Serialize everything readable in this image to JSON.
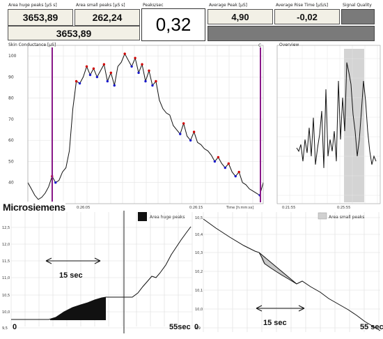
{
  "indicators": {
    "area_huge_peaks": {
      "label": "Area huge peaks [µS s]",
      "value": "3653,89"
    },
    "area_small_peaks": {
      "label": "Area small peaks [µS s]",
      "value": "262,24"
    },
    "total_area": {
      "value": "3653,89"
    },
    "peaks_per_sec": {
      "label": "Peaks/sec",
      "value": "0,32"
    },
    "average_peak": {
      "label": "Average Peak [µS]",
      "value": "4,90"
    },
    "average_rise_time": {
      "label": "Average Rise Time [µS/s]",
      "value": "-0,02"
    },
    "signal_quality": {
      "label": "Signal Quality"
    }
  },
  "colors": {
    "panel_bg": "#f2f0e6",
    "marker": "#8a1a8a",
    "peak_red": "#d00000",
    "trough_blue": "#1a1acc",
    "signal_quality": "#7a7a7a",
    "overview_window": "#d4d4d4"
  },
  "chart_data": [
    {
      "type": "line",
      "title": "Skin Conductance [µS]",
      "y_ticks": [
        "100",
        "90",
        "80",
        "70",
        "60",
        "50",
        "40",
        "30"
      ],
      "ylim": [
        30,
        105
      ],
      "x_ticks": [
        "0:25:55",
        "0:26:05",
        "0:26:15"
      ],
      "xlabel": "Time [h:mm:ss]",
      "marker_label": "C",
      "series": [
        {
          "values": [
            40,
            37,
            34,
            32,
            33,
            35,
            38,
            43,
            40,
            41,
            45,
            47,
            55,
            75,
            88,
            87,
            90,
            95,
            91,
            94,
            90,
            93,
            96,
            88,
            92,
            86,
            95,
            97,
            101,
            98,
            95,
            99,
            92,
            96,
            88,
            93,
            86,
            88,
            79,
            75,
            73,
            72,
            67,
            65,
            63,
            68,
            62,
            60,
            64,
            59,
            58,
            56,
            55,
            53,
            50,
            52,
            49,
            47,
            49,
            45,
            43,
            45,
            40,
            39,
            37,
            36,
            35,
            34,
            40
          ]
        }
      ]
    },
    {
      "type": "line",
      "title": "Overview",
      "x_ticks": [
        "0:21:55",
        "0:25:55"
      ],
      "series": [
        {
          "values": [
            50,
            48,
            52,
            42,
            55,
            47,
            62,
            45,
            68,
            40,
            50,
            58,
            72,
            38,
            85,
            45,
            55,
            48,
            60,
            42,
            90,
            55,
            80,
            60,
            101,
            95,
            88,
            70,
            60,
            45,
            55,
            72,
            90,
            78,
            60,
            48,
            40,
            45,
            42
          ]
        }
      ]
    },
    {
      "type": "area",
      "title": "Microsiemens",
      "legend": "Area huge peaks",
      "y_ticks": [
        "12,5",
        "12,0",
        "11,5",
        "11,0",
        "10,5",
        "10,0",
        "9,5"
      ],
      "annotation": "15 sec",
      "x_start_label": "0",
      "x_end_label": "55sec"
    },
    {
      "type": "area",
      "legend": "Area small peaks",
      "y_ticks": [
        "10,5",
        "10,4",
        "10,3",
        "10,2",
        "10,1",
        "10,0",
        "9,9"
      ],
      "annotation": "15 sec",
      "x_start_label": "0",
      "x_end_label": "55 sec"
    }
  ]
}
